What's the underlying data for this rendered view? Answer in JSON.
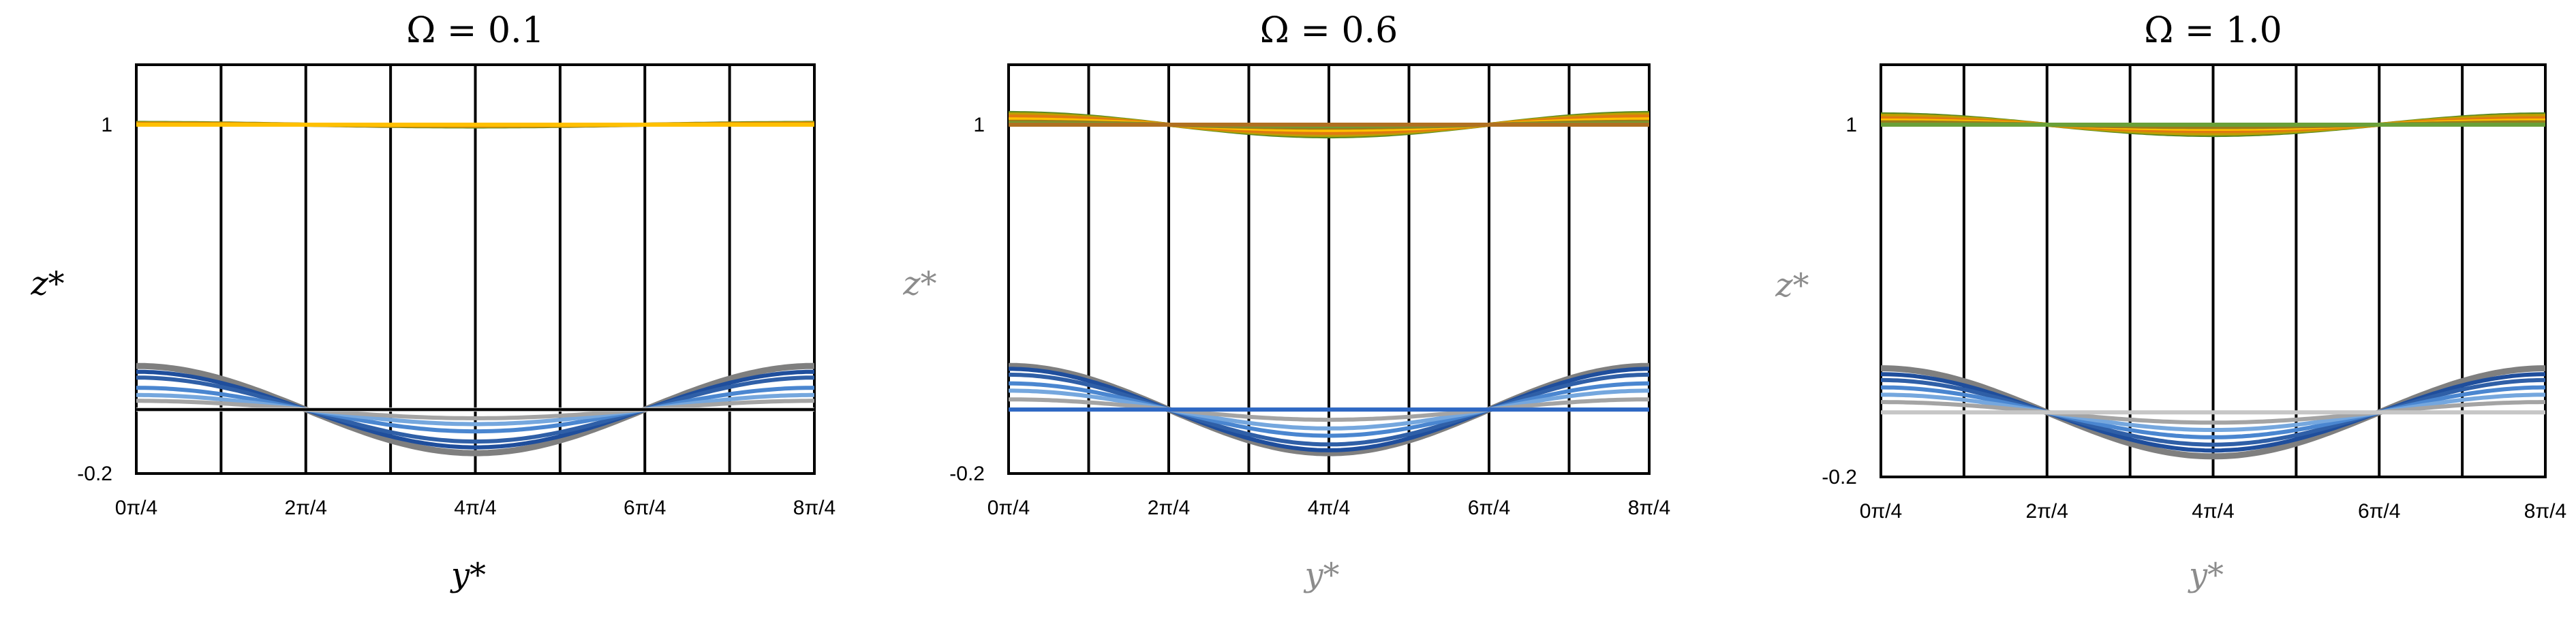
{
  "colors": {
    "bottom_series": [
      "#7f7f7f",
      "#1f4e9c",
      "#2f5fa7",
      "#4a86d0",
      "#75a7de",
      "#a4a4a4",
      "#c6c6c6",
      "#2e68c4"
    ],
    "top_series": [
      "#5b8a22",
      "#c0a000",
      "#e07a10",
      "#ffc000",
      "#9a7c1a",
      "#6aa038",
      "#b07020"
    ],
    "grid": "#000000"
  },
  "chart_data": [
    {
      "type": "line",
      "title": "Ω = 0.1",
      "xlabel": "y*",
      "ylabel": "z*",
      "xlim": [
        0,
        8
      ],
      "ylim": [
        -0.2,
        1.2
      ],
      "x_unit": "π/4",
      "x_ticks": [
        "0π/4",
        "2π/4",
        "4π/4",
        "6π/4",
        "8π/4"
      ],
      "y_ticks": [
        {
          "value": -0.2,
          "label": "-0.2"
        },
        {
          "value": 1,
          "label": "1"
        }
      ],
      "vertical_grid": true,
      "grid_lines": [
        1,
        2,
        3,
        4,
        5,
        6,
        7
      ],
      "label_color": "#000000",
      "bottom_series_mean": 0.02,
      "bottom_amplitudes": [
        0.15,
        0.13,
        0.11,
        0.075,
        0.05,
        0.03,
        0.0
      ],
      "top_series_mean": 1.0,
      "top_amplitudes": [
        0.006,
        0.004,
        0.002,
        0.0
      ]
    },
    {
      "type": "line",
      "title": "Ω = 0.6",
      "xlabel": "y*",
      "ylabel": "z*",
      "xlim": [
        0,
        8
      ],
      "ylim": [
        -0.2,
        1.2
      ],
      "x_unit": "π/4",
      "x_ticks": [
        "0π/4",
        "2π/4",
        "4π/4",
        "6π/4",
        "8π/4"
      ],
      "y_ticks": [
        {
          "value": -0.2,
          "label": "-0.2"
        },
        {
          "value": 1,
          "label": "1"
        }
      ],
      "vertical_grid": true,
      "grid_lines": [
        1,
        2,
        3,
        4,
        5,
        6,
        7
      ],
      "label_color": "#8c8c8c",
      "bottom_series_mean": 0.02,
      "bottom_amplitudes": [
        0.15,
        0.14,
        0.12,
        0.09,
        0.065,
        0.035,
        0.0,
        0.0
      ],
      "top_series_mean": 1.0,
      "top_amplitudes": [
        0.04,
        0.035,
        0.028,
        0.018,
        0.01,
        0.004,
        0.0
      ]
    },
    {
      "type": "line",
      "title": "Ω = 1.0",
      "xlabel": "y*",
      "ylabel": "z*",
      "xlim": [
        0,
        8
      ],
      "ylim": [
        -0.2,
        1.2
      ],
      "x_unit": "π/4",
      "x_ticks": [
        "0π/4",
        "2π/4",
        "4π/4",
        "6π/4",
        "8π/4"
      ],
      "y_ticks": [
        {
          "value": -0.2,
          "label": "-0.2"
        },
        {
          "value": 1,
          "label": "1"
        }
      ],
      "vertical_grid": true,
      "grid_lines": [
        1,
        2,
        3,
        4,
        5,
        6,
        7
      ],
      "label_color": "#8c8c8c",
      "bottom_series_mean": 0.02,
      "bottom_amplitudes": [
        0.15,
        0.13,
        0.11,
        0.085,
        0.06,
        0.035,
        0.0
      ],
      "top_series_mean": 1.0,
      "top_amplitudes": [
        0.035,
        0.03,
        0.022,
        0.014,
        0.008,
        0.0
      ]
    }
  ]
}
